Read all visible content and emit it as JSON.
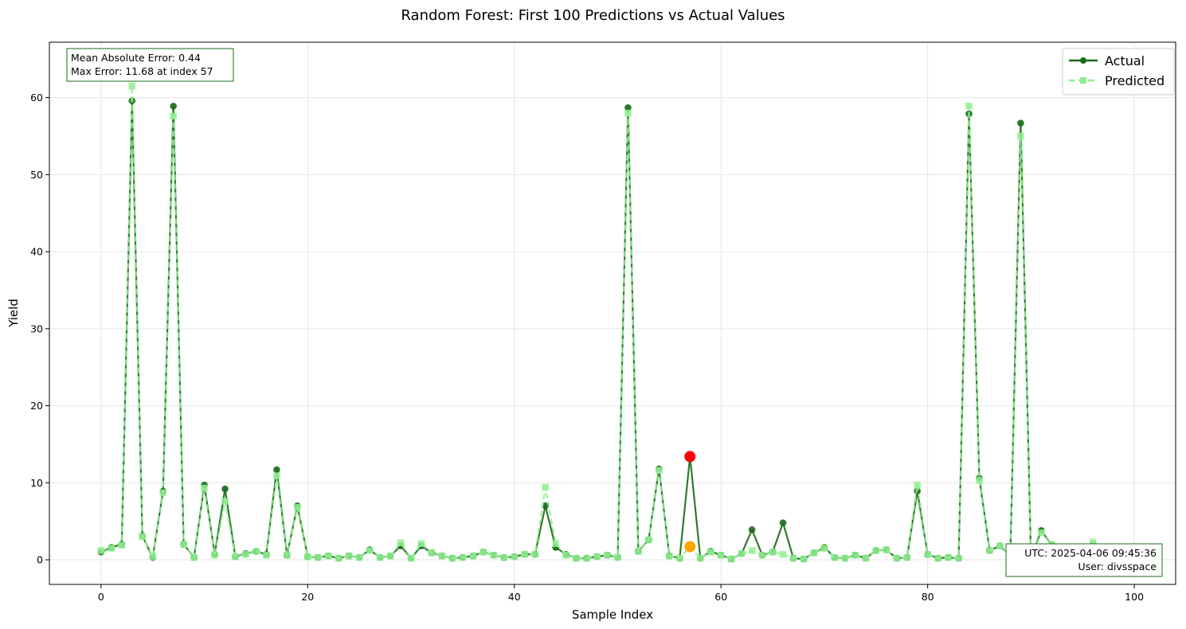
{
  "chart_data": {
    "type": "line",
    "title": "Random Forest: First 100 Predictions vs Actual Values",
    "xlabel": "Sample Index",
    "ylabel": "Yield",
    "xlim": [
      -5,
      104
    ],
    "ylim": [
      -3.2,
      67.2
    ],
    "xticks": [
      0,
      20,
      40,
      60,
      80,
      100
    ],
    "yticks": [
      0,
      10,
      20,
      30,
      40,
      50,
      60
    ],
    "grid": true,
    "legend_position": "top-right",
    "x": [
      0,
      1,
      2,
      3,
      4,
      5,
      6,
      7,
      8,
      9,
      10,
      11,
      12,
      13,
      14,
      15,
      16,
      17,
      18,
      19,
      20,
      21,
      22,
      23,
      24,
      25,
      26,
      27,
      28,
      29,
      30,
      31,
      32,
      33,
      34,
      35,
      36,
      37,
      38,
      39,
      40,
      41,
      42,
      43,
      44,
      45,
      46,
      47,
      48,
      49,
      50,
      51,
      52,
      53,
      54,
      55,
      56,
      57,
      58,
      59,
      60,
      61,
      62,
      63,
      64,
      65,
      66,
      67,
      68,
      69,
      70,
      71,
      72,
      73,
      74,
      75,
      76,
      77,
      78,
      79,
      80,
      81,
      82,
      83,
      84,
      85,
      86,
      87,
      88,
      89,
      90,
      91,
      92,
      93,
      94,
      95,
      96,
      97,
      98,
      99
    ],
    "series": [
      {
        "name": "Actual",
        "color": "#1a6b1a",
        "line_style": "solid",
        "marker": "circle",
        "values": [
          1.0,
          1.6,
          2.0,
          59.6,
          3.1,
          0.3,
          8.9,
          58.9,
          2.0,
          0.3,
          9.7,
          0.7,
          9.2,
          0.4,
          0.8,
          1.1,
          0.7,
          11.7,
          0.6,
          7.0,
          0.4,
          0.3,
          0.5,
          0.2,
          0.5,
          0.3,
          1.3,
          0.3,
          0.5,
          1.8,
          0.2,
          1.8,
          0.9,
          0.5,
          0.2,
          0.3,
          0.5,
          1.0,
          0.6,
          0.3,
          0.4,
          0.7,
          0.7,
          7.0,
          1.6,
          0.7,
          0.2,
          0.2,
          0.4,
          0.6,
          0.3,
          58.7,
          1.1,
          2.6,
          11.8,
          0.5,
          0.2,
          13.4,
          0.2,
          1.1,
          0.6,
          0.1,
          0.8,
          3.9,
          0.6,
          1.0,
          4.8,
          0.2,
          0.1,
          0.9,
          1.6,
          0.3,
          0.2,
          0.6,
          0.2,
          1.2,
          1.3,
          0.2,
          0.3,
          8.9,
          0.7,
          0.2,
          0.3,
          0.2,
          57.9,
          10.6,
          1.2,
          1.8,
          0.5,
          56.7,
          0.2,
          3.8,
          1.9,
          0.4,
          0.3,
          0.2,
          2.0,
          0.3,
          0.4,
          0.2
        ]
      },
      {
        "name": "Predicted",
        "color": "#90ee90",
        "line_style": "dashed",
        "marker": "square",
        "values": [
          1.2,
          1.5,
          1.9,
          61.5,
          3.0,
          0.4,
          8.7,
          57.6,
          2.0,
          0.3,
          9.3,
          0.6,
          7.6,
          0.4,
          0.7,
          1.1,
          0.6,
          10.9,
          0.6,
          6.8,
          0.4,
          0.3,
          0.5,
          0.2,
          0.5,
          0.3,
          1.2,
          0.3,
          0.5,
          2.2,
          0.2,
          2.1,
          0.9,
          0.5,
          0.2,
          0.3,
          0.5,
          1.0,
          0.6,
          0.3,
          0.4,
          0.7,
          0.7,
          9.4,
          2.1,
          0.6,
          0.2,
          0.2,
          0.4,
          0.6,
          0.3,
          58.0,
          1.1,
          2.6,
          11.6,
          0.5,
          0.2,
          1.7,
          0.2,
          1.0,
          0.6,
          0.1,
          0.8,
          1.2,
          0.6,
          1.0,
          0.7,
          0.2,
          0.1,
          0.9,
          1.5,
          0.3,
          0.2,
          0.6,
          0.2,
          1.2,
          1.3,
          0.2,
          0.3,
          9.7,
          0.7,
          0.2,
          0.3,
          0.2,
          58.9,
          10.3,
          1.2,
          1.8,
          0.5,
          55.0,
          0.2,
          3.5,
          2.0,
          0.4,
          0.3,
          0.2,
          2.3,
          0.3,
          0.4,
          0.2
        ]
      }
    ],
    "highlight": {
      "index": 57,
      "actual": 13.4,
      "predicted": 1.7,
      "actual_color": "#ff0000",
      "predicted_color": "#ffa500"
    },
    "annotations": {
      "metrics_line1": "Mean Absolute Error: 0.44",
      "metrics_line2": "Max Error: 11.68 at index 57",
      "timestamp_line1": "UTC: 2025-04-06 09:45:36",
      "timestamp_line2": "User: divsspace"
    },
    "legend": [
      "Actual",
      "Predicted"
    ],
    "grid_color": "#e6e6e6",
    "box_border_color": "#1a6b1a"
  }
}
